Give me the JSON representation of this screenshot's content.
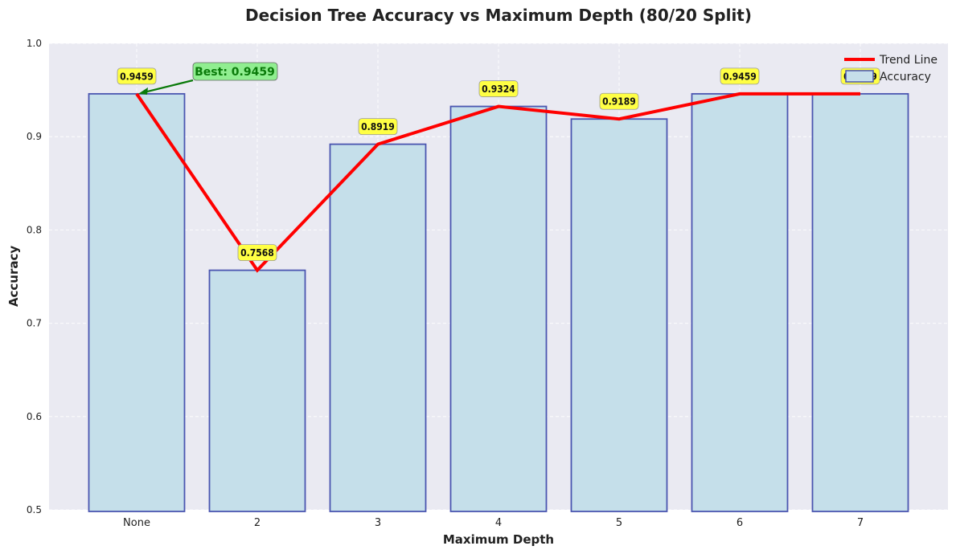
{
  "chart_data": {
    "type": "bar",
    "title": "Decision Tree Accuracy vs Maximum Depth (80/20 Split)",
    "xlabel": "Maximum Depth",
    "ylabel": "Accuracy",
    "categories": [
      "None",
      "2",
      "3",
      "4",
      "5",
      "6",
      "7"
    ],
    "ylim": [
      0.5,
      1.0
    ],
    "yticks": [
      "0.5",
      "0.6",
      "0.7",
      "0.8",
      "0.9",
      "1.0"
    ],
    "series": [
      {
        "name": "Accuracy",
        "type": "bar",
        "values": [
          0.9459,
          0.7568,
          0.8919,
          0.9324,
          0.9189,
          0.9459,
          0.9459
        ]
      },
      {
        "name": "Trend Line",
        "type": "line",
        "values": [
          0.9459,
          0.7568,
          0.8919,
          0.9324,
          0.9189,
          0.9459,
          0.9459
        ]
      }
    ],
    "data_labels": [
      "0.9459",
      "0.7568",
      "0.8919",
      "0.9324",
      "0.9189",
      "0.9459",
      "0.9459"
    ],
    "annotation": {
      "text": "Best: 0.9459",
      "category": "None",
      "value": 0.9459
    },
    "legend": {
      "position": "top-right",
      "entries": [
        "Trend Line",
        "Accuracy"
      ]
    },
    "grid": true,
    "colors": {
      "bar_fill": "#c5dfea",
      "bar_edge": "#4a55b0",
      "line": "#ff0000",
      "label_bg": "#ffff44",
      "annotation_bg": "#90ee90",
      "annotation_arrow": "#0a7a0a",
      "plot_bg": "#eaeaf2"
    }
  }
}
